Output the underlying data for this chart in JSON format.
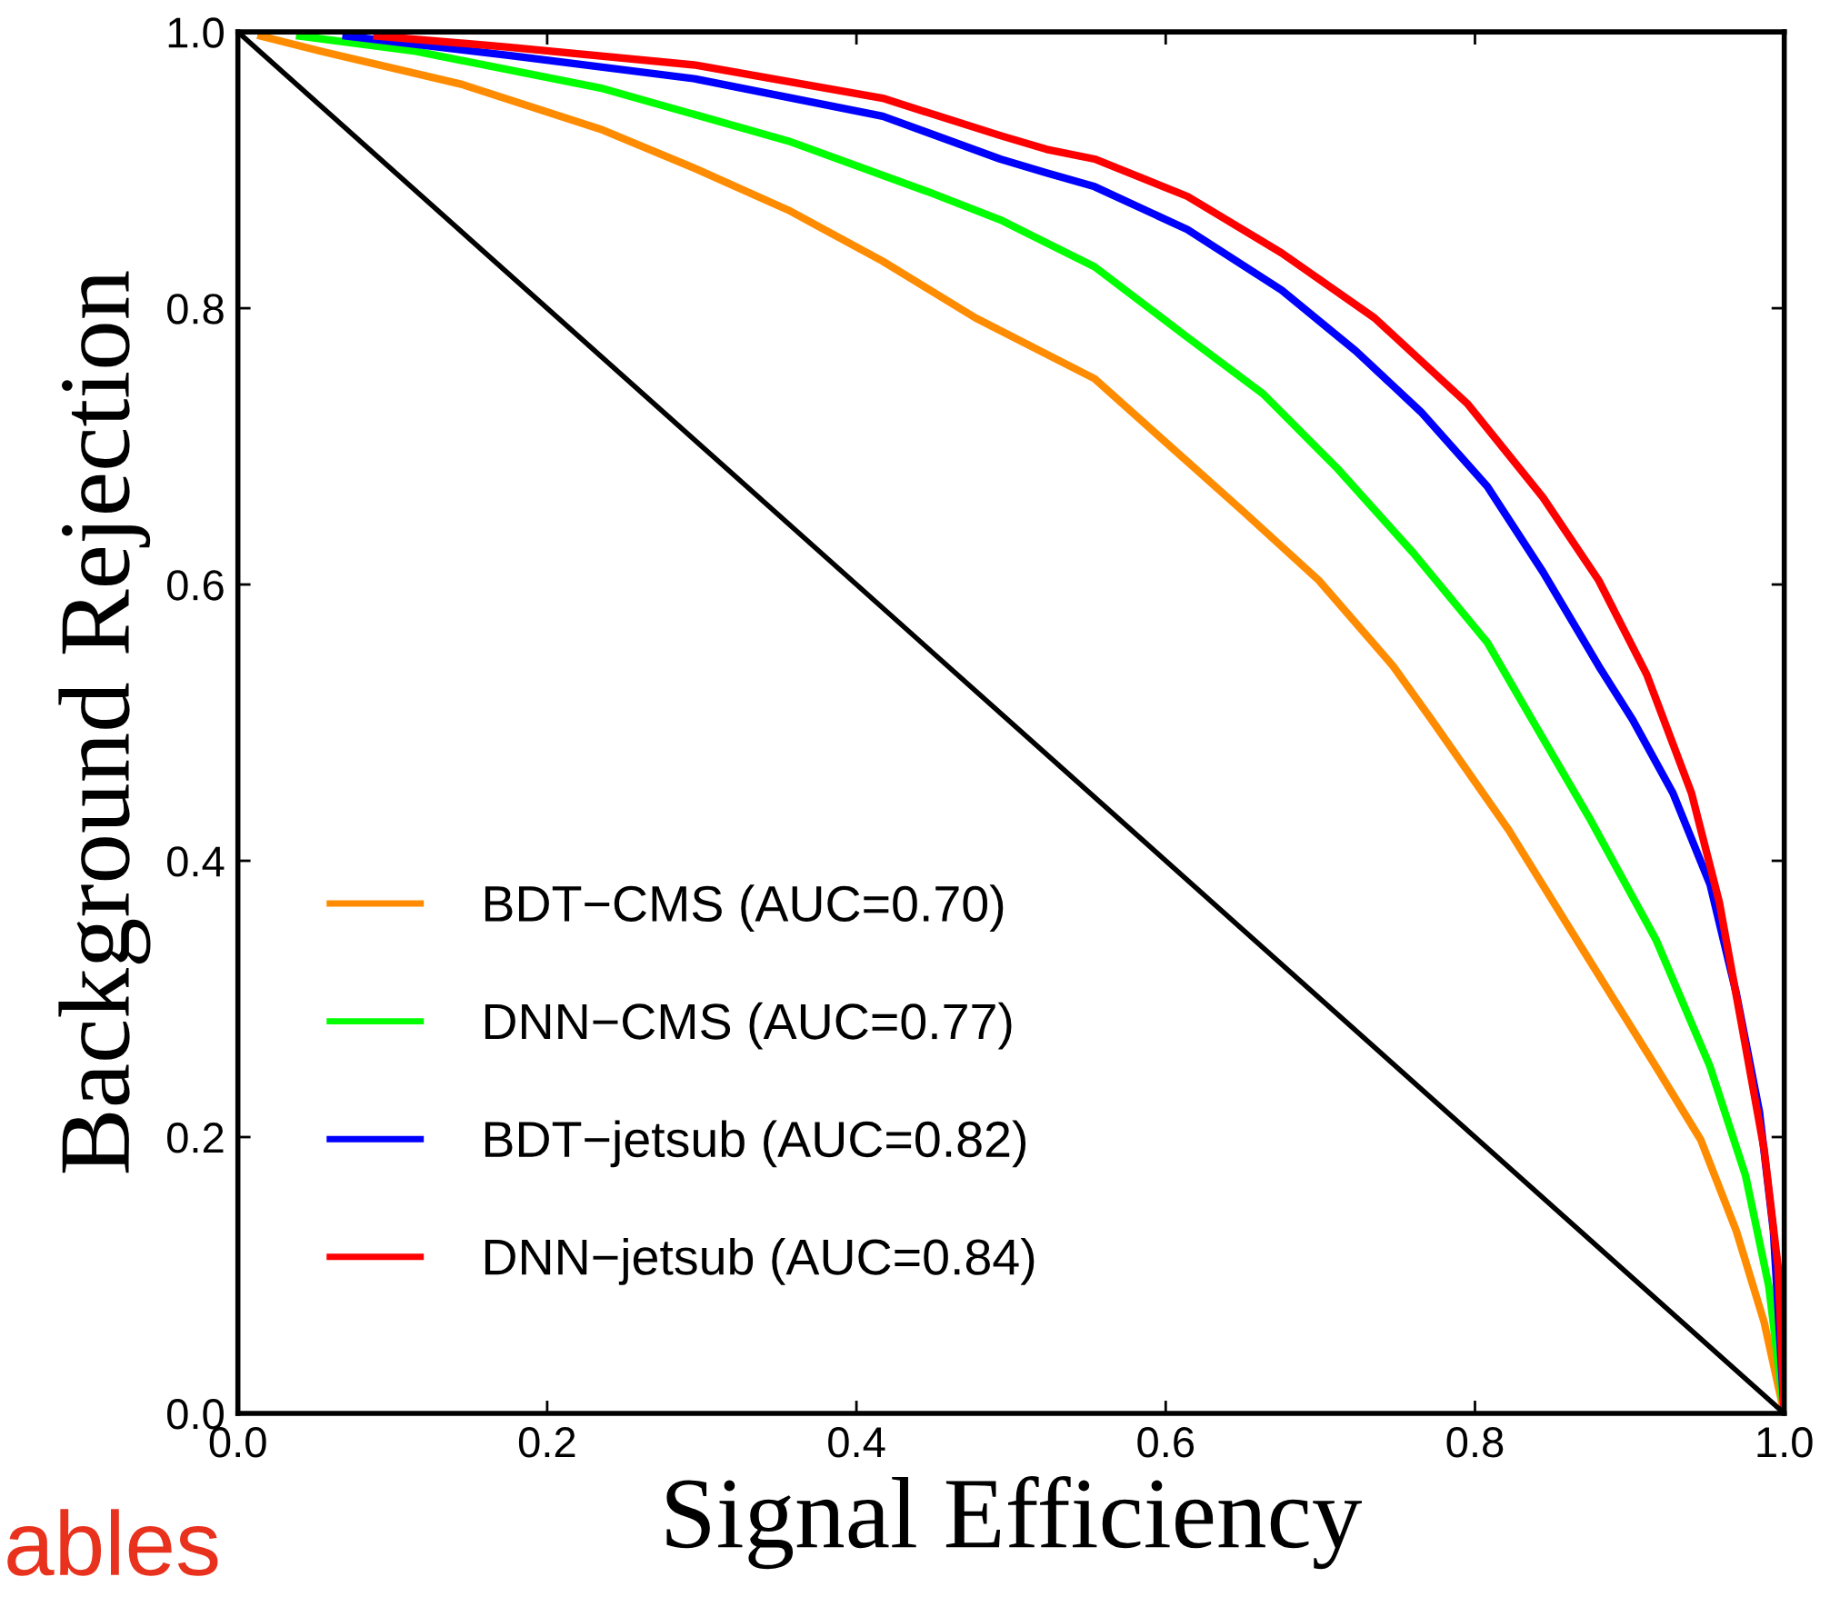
{
  "chart_data": {
    "type": "line",
    "xlabel": "Signal Efficiency",
    "ylabel": "Background Rejection",
    "xlim": [
      0,
      1
    ],
    "ylim": [
      0,
      1
    ],
    "xticks": [
      {
        "value": 0,
        "label": "0.0"
      },
      0.2,
      0.4,
      0.6,
      0.8,
      {
        "value": 1,
        "label": "1.0"
      }
    ],
    "yticks": [
      {
        "value": 0,
        "label": "0.0"
      },
      0.2,
      0.4,
      0.6,
      0.8,
      {
        "value": 1,
        "label": "1.0"
      }
    ],
    "grid": false,
    "legend": "bottom left",
    "marker": "none",
    "line_style": "solid",
    "annotations": [
      "ables"
    ],
    "series": [
      {
        "name": "BDT−CMS (AUC=0.70)",
        "color": "#ff8c00",
        "x": [
          0.015,
          0.054,
          0.145,
          0.236,
          0.296,
          0.356,
          0.417,
          0.477,
          0.554,
          0.602,
          0.65,
          0.699,
          0.747,
          0.772,
          0.822,
          0.869,
          0.917,
          0.946,
          0.969,
          0.987,
          1
        ],
        "values": [
          0.997,
          0.986,
          0.962,
          0.929,
          0.901,
          0.871,
          0.834,
          0.793,
          0.749,
          0.701,
          0.653,
          0.603,
          0.541,
          0.502,
          0.422,
          0.337,
          0.251,
          0.198,
          0.132,
          0.066,
          0
        ]
      },
      {
        "name": "DNN−CMS (AUC=0.77)",
        "color": "#00ff00",
        "x": [
          0.04,
          0.115,
          0.236,
          0.356,
          0.447,
          0.493,
          0.554,
          0.614,
          0.663,
          0.711,
          0.76,
          0.808,
          0.837,
          0.875,
          0.917,
          0.952,
          0.975,
          0.99,
          1
        ],
        "values": [
          0.997,
          0.986,
          0.959,
          0.921,
          0.884,
          0.864,
          0.83,
          0.779,
          0.738,
          0.684,
          0.623,
          0.558,
          0.502,
          0.429,
          0.343,
          0.251,
          0.172,
          0.092,
          0
        ]
      },
      {
        "name": "BDT−jetsub (AUC=0.82)",
        "color": "#0000ff",
        "x": [
          0.07,
          0.175,
          0.296,
          0.417,
          0.493,
          0.523,
          0.554,
          0.614,
          0.675,
          0.723,
          0.765,
          0.808,
          0.844,
          0.88,
          0.902,
          0.928,
          0.952,
          0.969,
          0.984,
          0.993,
          1
        ],
        "values": [
          0.997,
          0.983,
          0.966,
          0.939,
          0.908,
          0.898,
          0.888,
          0.857,
          0.813,
          0.769,
          0.725,
          0.671,
          0.609,
          0.541,
          0.502,
          0.449,
          0.383,
          0.304,
          0.218,
          0.132,
          0
        ]
      },
      {
        "name": "DNN−jetsub (AUC=0.84)",
        "color": "#ff0000",
        "x": [
          0.09,
          0.175,
          0.296,
          0.417,
          0.493,
          0.523,
          0.554,
          0.614,
          0.675,
          0.735,
          0.795,
          0.844,
          0.88,
          0.911,
          0.94,
          0.958,
          0.972,
          0.987,
          0.996,
          1
        ],
        "values": [
          0.997,
          0.989,
          0.976,
          0.952,
          0.925,
          0.915,
          0.908,
          0.881,
          0.84,
          0.793,
          0.731,
          0.663,
          0.603,
          0.535,
          0.449,
          0.37,
          0.284,
          0.191,
          0.106,
          0
        ]
      },
      {
        "color": "#000000",
        "x": [
          0,
          1
        ],
        "values": [
          1,
          0
        ]
      }
    ]
  }
}
